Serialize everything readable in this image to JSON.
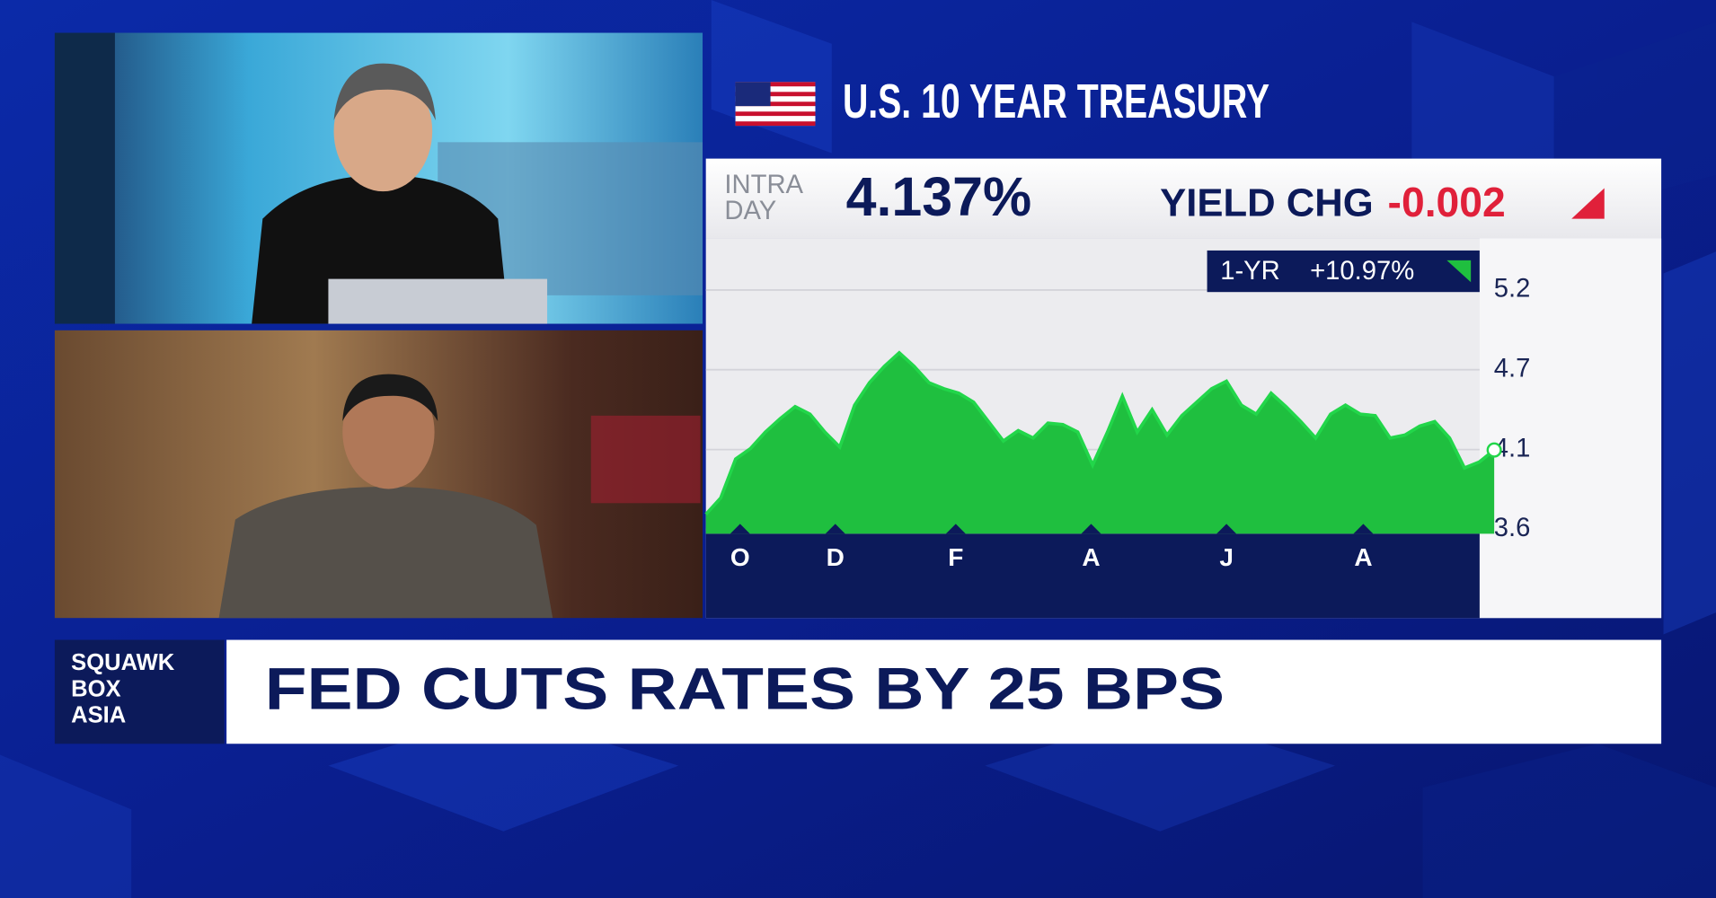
{
  "title": "U.S. 10 YEAR TREASURY",
  "quote": {
    "intraday_label": [
      "INTRA",
      "DAY"
    ],
    "price": "4.137%",
    "yield_chg_label": "YIELD CHG",
    "yield_chg": "-0.002"
  },
  "one_year": {
    "label": "1-YR",
    "change": "+10.97%"
  },
  "ticker": {
    "show": [
      "SQUAWK",
      "BOX",
      "ASIA"
    ],
    "headline": "FED CUTS RATES BY 25 BPS"
  },
  "chart_data": {
    "type": "area",
    "color": "#1fbf3f",
    "values": [
      3.7,
      3.81,
      4.07,
      4.14,
      4.25,
      4.34,
      4.42,
      4.37,
      4.25,
      4.15,
      4.43,
      4.58,
      4.69,
      4.78,
      4.69,
      4.58,
      4.54,
      4.51,
      4.45,
      4.32,
      4.19,
      4.26,
      4.21,
      4.31,
      4.3,
      4.25,
      4.03,
      4.25,
      4.49,
      4.25,
      4.4,
      4.23,
      4.36,
      4.45,
      4.54,
      4.59,
      4.43,
      4.37,
      4.51,
      4.42,
      4.32,
      4.21,
      4.37,
      4.43,
      4.37,
      4.36,
      4.21,
      4.23,
      4.29,
      4.32,
      4.21,
      4.01,
      4.05,
      4.13
    ],
    "xlim": [
      0,
      53
    ],
    "xticks": [
      {
        "value": 2.3,
        "label": "O"
      },
      {
        "value": 8.7,
        "label": "D"
      },
      {
        "value": 16.8,
        "label": "F"
      },
      {
        "value": 25.9,
        "label": "A"
      },
      {
        "value": 35.0,
        "label": "J"
      },
      {
        "value": 44.2,
        "label": "A"
      }
    ],
    "ylim": [
      3.57,
      5.53
    ],
    "yticks": [
      3.6,
      {
        "value": 4.133,
        "label": "4.1"
      },
      {
        "value": 4.667,
        "label": "4.7"
      },
      5.2
    ],
    "grid": true
  }
}
